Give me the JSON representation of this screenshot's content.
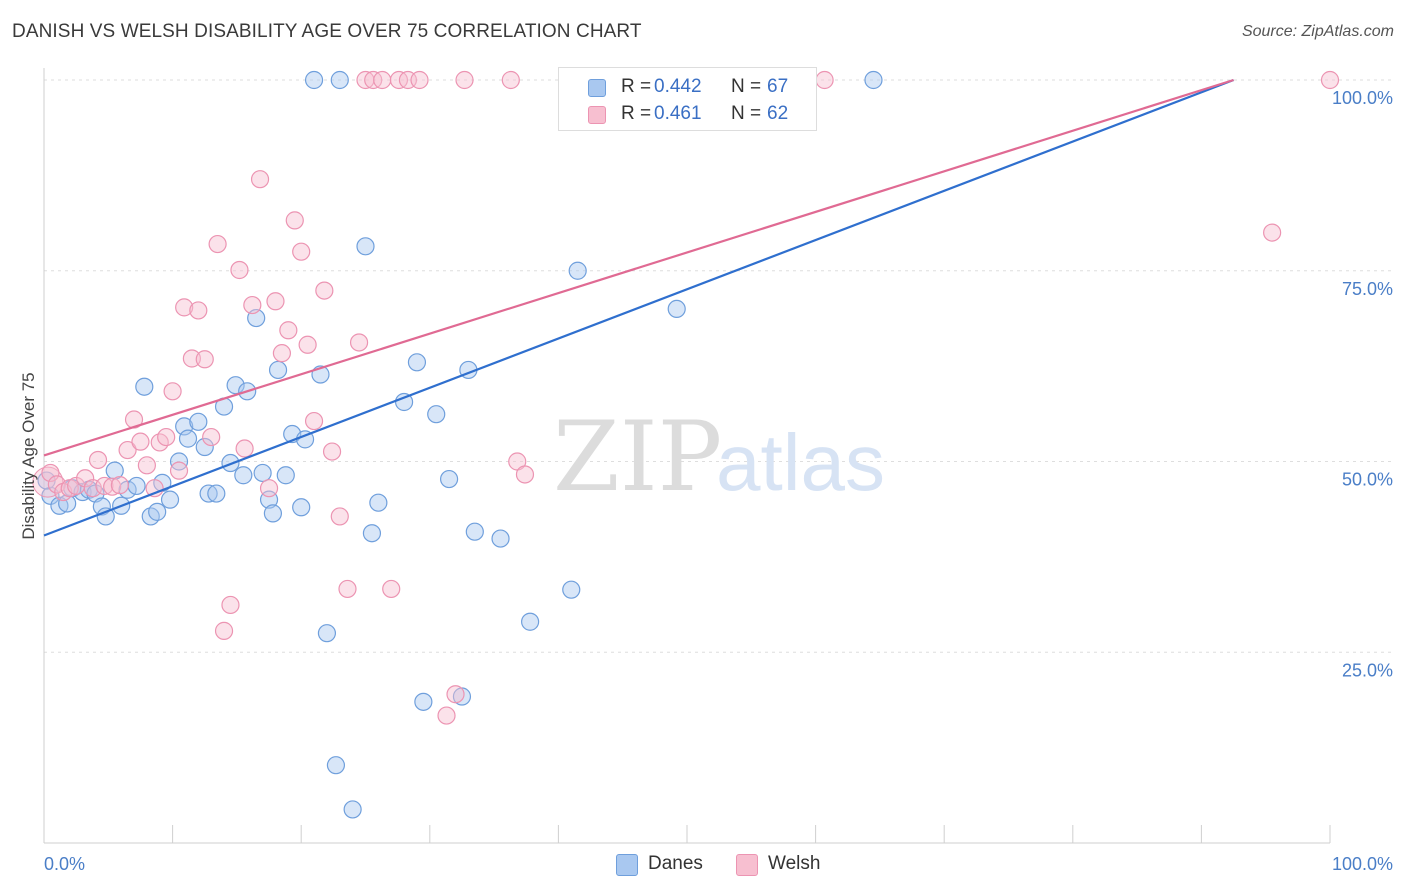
{
  "header": {
    "title": "DANISH VS WELSH DISABILITY AGE OVER 75 CORRELATION CHART",
    "source": "Source: ZipAtlas.com"
  },
  "watermark": {
    "zip": "ZIP",
    "atlas": "atlas"
  },
  "legend": {
    "danes": {
      "r_label": "R =",
      "r_value": "0.442",
      "n_label": "N =",
      "n_value": "67"
    },
    "welsh": {
      "r_label": "R =",
      "r_value": "0.461",
      "n_label": "N =",
      "n_value": "62"
    }
  },
  "colors": {
    "danes_fill": "#a9c8f0",
    "danes_stroke": "#6f9fdc",
    "danes_line": "#2f6fce",
    "welsh_fill": "#f7bfd0",
    "welsh_stroke": "#ec94b2",
    "welsh_line": "#e06a93",
    "grid": "#dedede",
    "tick_text": "#4a7ec7"
  },
  "chart_data": {
    "type": "scatter",
    "title": "DANISH VS WELSH DISABILITY AGE OVER 75 CORRELATION CHART",
    "xlabel": "",
    "ylabel": "Disability Age Over 75",
    "xlim": [
      0,
      100
    ],
    "ylim": [
      0,
      100
    ],
    "x_tick_labels": [
      "0.0%",
      "100.0%"
    ],
    "y_tick_labels": [
      "25.0%",
      "50.0%",
      "75.0%",
      "100.0%"
    ],
    "y_tick_values": [
      25,
      50,
      75,
      100
    ],
    "grid": true,
    "legend_position": "top-center",
    "series": [
      {
        "name": "Danes",
        "r": 0.442,
        "n": 67,
        "trend": {
          "x": [
            0,
            92.5
          ],
          "y": [
            40.3,
            100
          ]
        },
        "points": [
          [
            0.5,
            45.5
          ],
          [
            1.2,
            44.2
          ],
          [
            1.8,
            44.5
          ],
          [
            2.2,
            46.5
          ],
          [
            3.0,
            46.0
          ],
          [
            3.5,
            46.3
          ],
          [
            4.0,
            45.8
          ],
          [
            4.5,
            44.1
          ],
          [
            4.8,
            42.8
          ],
          [
            5.5,
            48.8
          ],
          [
            6.0,
            44.2
          ],
          [
            6.5,
            46.3
          ],
          [
            7.2,
            46.8
          ],
          [
            7.8,
            59.8
          ],
          [
            8.3,
            42.8
          ],
          [
            8.8,
            43.4
          ],
          [
            9.2,
            47.2
          ],
          [
            9.8,
            45.0
          ],
          [
            10.5,
            50.0
          ],
          [
            10.9,
            54.6
          ],
          [
            11.2,
            53.0
          ],
          [
            12.0,
            55.2
          ],
          [
            12.5,
            51.9
          ],
          [
            12.8,
            45.8
          ],
          [
            13.4,
            45.8
          ],
          [
            14.0,
            57.2
          ],
          [
            14.5,
            49.8
          ],
          [
            14.9,
            60.0
          ],
          [
            15.5,
            48.2
          ],
          [
            15.8,
            59.2
          ],
          [
            16.5,
            68.8
          ],
          [
            17.0,
            48.5
          ],
          [
            17.5,
            45.0
          ],
          [
            17.8,
            43.2
          ],
          [
            18.2,
            62.0
          ],
          [
            18.8,
            48.2
          ],
          [
            19.3,
            53.6
          ],
          [
            20.0,
            44.0
          ],
          [
            20.3,
            52.9
          ],
          [
            21.0,
            100.0
          ],
          [
            21.5,
            61.4
          ],
          [
            22.0,
            27.5
          ],
          [
            22.7,
            10.2
          ],
          [
            23.0,
            100.0
          ],
          [
            24.0,
            4.4
          ],
          [
            25.0,
            78.2
          ],
          [
            25.5,
            40.6
          ],
          [
            26.0,
            44.6
          ],
          [
            28.0,
            57.8
          ],
          [
            29.0,
            63.0
          ],
          [
            29.5,
            18.5
          ],
          [
            30.5,
            56.2
          ],
          [
            31.5,
            47.7
          ],
          [
            32.5,
            19.2
          ],
          [
            33.0,
            62.0
          ],
          [
            33.5,
            40.8
          ],
          [
            35.5,
            39.9
          ],
          [
            37.8,
            29.0
          ],
          [
            41.0,
            33.2
          ],
          [
            41.5,
            75.0
          ],
          [
            43.8,
            100.0
          ],
          [
            49.5,
            100.0
          ],
          [
            51.5,
            100.0
          ],
          [
            53.5,
            100.0
          ],
          [
            49.2,
            70.0
          ],
          [
            64.5,
            100.0
          ],
          [
            0.2,
            47.5
          ]
        ]
      },
      {
        "name": "Welsh",
        "r": 0.461,
        "n": 62,
        "trend": {
          "x": [
            0,
            92.5
          ],
          "y": [
            50.8,
            100
          ]
        },
        "points": [
          [
            0.5,
            48.5
          ],
          [
            1.0,
            47.0
          ],
          [
            1.5,
            46.0
          ],
          [
            2.0,
            46.5
          ],
          [
            2.5,
            46.8
          ],
          [
            3.2,
            47.8
          ],
          [
            3.8,
            46.5
          ],
          [
            4.2,
            50.2
          ],
          [
            4.7,
            46.8
          ],
          [
            5.3,
            46.7
          ],
          [
            5.9,
            46.9
          ],
          [
            6.5,
            51.5
          ],
          [
            7.0,
            55.5
          ],
          [
            7.5,
            52.6
          ],
          [
            8.0,
            49.5
          ],
          [
            8.6,
            46.5
          ],
          [
            9.0,
            52.5
          ],
          [
            9.5,
            53.2
          ],
          [
            10.0,
            59.2
          ],
          [
            10.5,
            48.8
          ],
          [
            10.9,
            70.2
          ],
          [
            11.5,
            63.5
          ],
          [
            12.0,
            69.8
          ],
          [
            12.5,
            63.4
          ],
          [
            13.0,
            53.2
          ],
          [
            13.5,
            78.5
          ],
          [
            14.0,
            27.8
          ],
          [
            14.5,
            31.2
          ],
          [
            15.2,
            75.1
          ],
          [
            15.6,
            51.7
          ],
          [
            16.2,
            70.5
          ],
          [
            16.8,
            87.0
          ],
          [
            17.5,
            46.5
          ],
          [
            18.0,
            71.0
          ],
          [
            18.5,
            64.2
          ],
          [
            19.0,
            67.2
          ],
          [
            19.5,
            81.6
          ],
          [
            20.0,
            77.5
          ],
          [
            20.5,
            65.3
          ],
          [
            21.0,
            55.3
          ],
          [
            21.8,
            72.4
          ],
          [
            22.4,
            51.3
          ],
          [
            23.0,
            42.8
          ],
          [
            23.6,
            33.3
          ],
          [
            24.5,
            65.6
          ],
          [
            25.0,
            100.0
          ],
          [
            25.6,
            100.0
          ],
          [
            26.3,
            100.0
          ],
          [
            27.0,
            33.3
          ],
          [
            27.6,
            100.0
          ],
          [
            28.3,
            100.0
          ],
          [
            29.2,
            100.0
          ],
          [
            31.3,
            16.7
          ],
          [
            32.0,
            19.5
          ],
          [
            32.7,
            100.0
          ],
          [
            36.3,
            100.0
          ],
          [
            36.8,
            50.0
          ],
          [
            37.4,
            48.3
          ],
          [
            40.7,
            100.0
          ],
          [
            60.7,
            100.0
          ],
          [
            95.5,
            80.0
          ],
          [
            100.0,
            100.0
          ]
        ]
      }
    ]
  }
}
